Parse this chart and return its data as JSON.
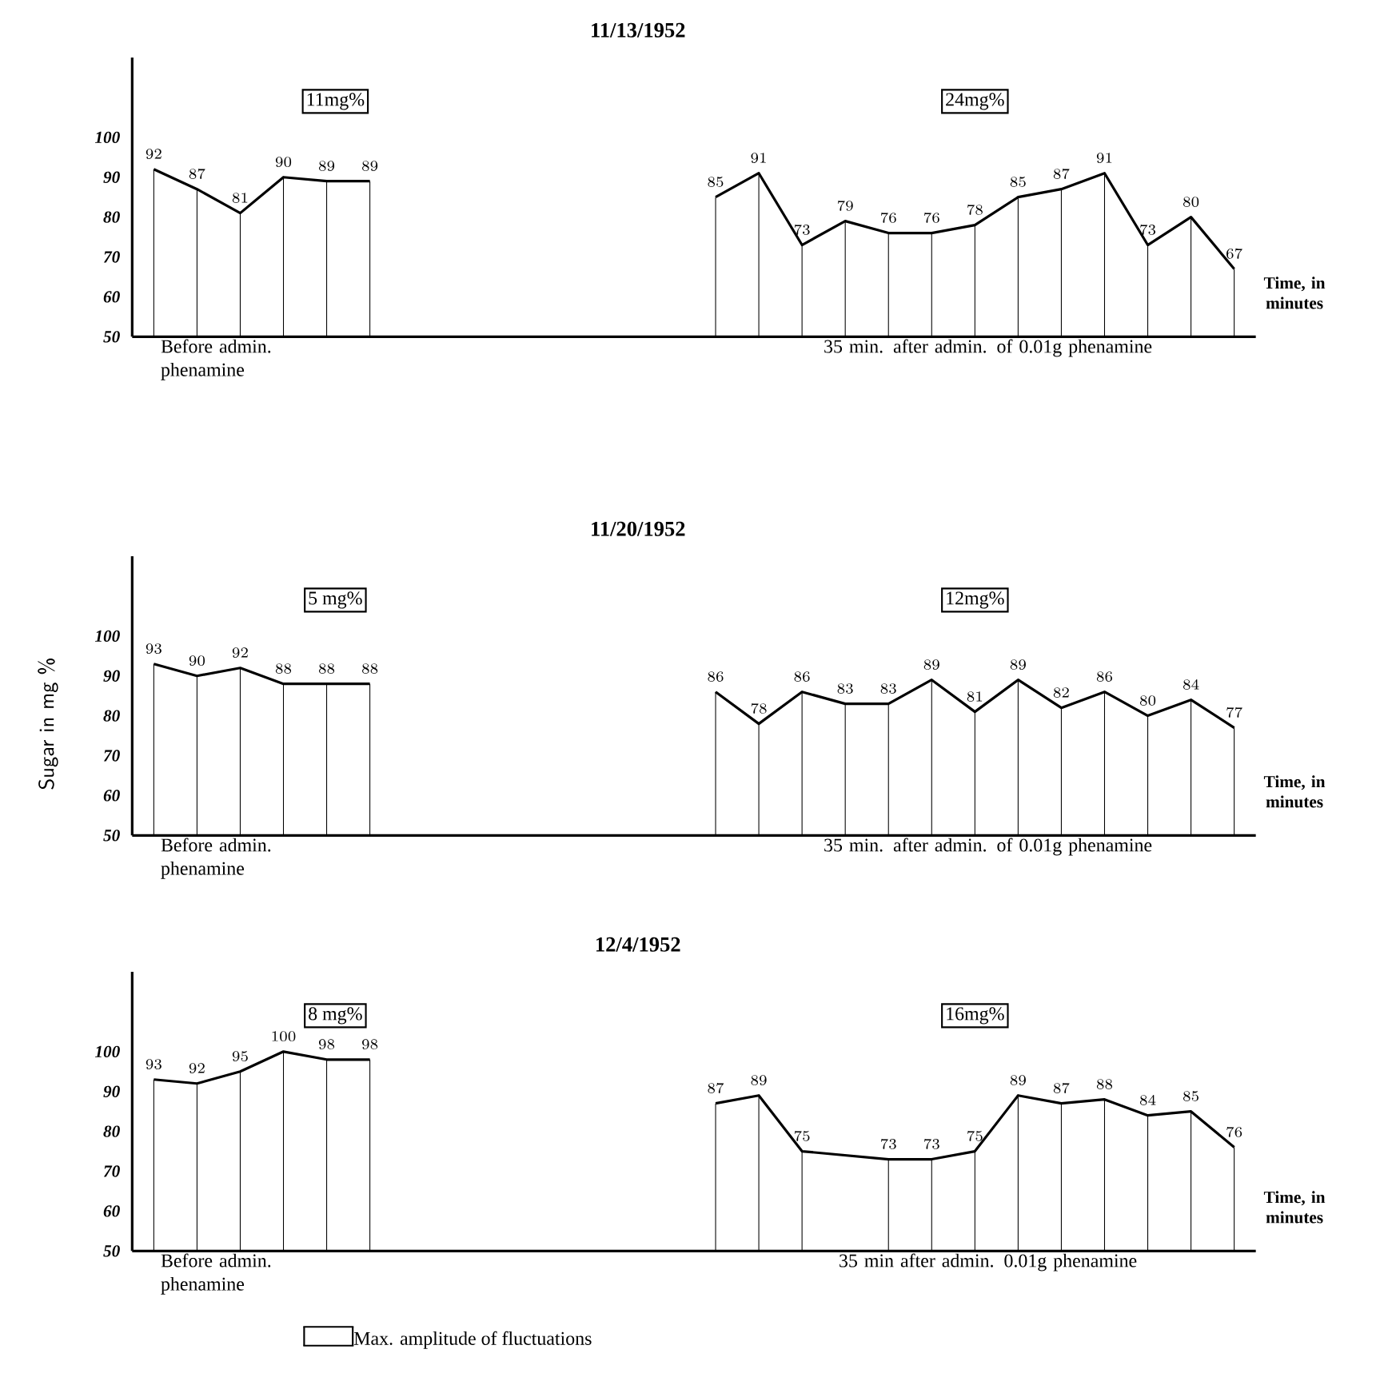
{
  "chart_data": [
    {
      "type": "line",
      "title": "11/13/1952",
      "categories": [
        null,
        null,
        null,
        null,
        null,
        null,
        null,
        null,
        null,
        null,
        null,
        null,
        null,
        null,
        null,
        null,
        null,
        null,
        null,
        null,
        null,
        null,
        null,
        null,
        null,
        null
      ],
      "series": [
        {
          "color": "#000000",
          "values": [
            92,
            87,
            81,
            90,
            89,
            89,
            null,
            null,
            null,
            null,
            null,
            null,
            null,
            null,
            null,
            null,
            null,
            null,
            null,
            null,
            null,
            null,
            null,
            null,
            null,
            null
          ]
        },
        {
          "color": "#000000",
          "values": [
            null,
            null,
            null,
            null,
            null,
            null,
            null,
            null,
            null,
            null,
            null,
            null,
            null,
            85,
            91,
            73,
            79,
            76,
            76,
            78,
            85,
            87,
            91,
            73,
            80,
            67
          ]
        }
      ],
      "ylim": [
        50,
        120
      ],
      "yticks": [
        50,
        60,
        70,
        80,
        90,
        100
      ],
      "data_labels": true,
      "tick_labels": "y",
      "annotations": [
        "11mg%",
        "24mg%",
        "Before admin. phenamine",
        "35 min. after admin. of 0.01g phenamine",
        "Time, in minutes"
      ]
    },
    {
      "type": "line",
      "title": "11/20/1952",
      "ylabel": "Sugar in mg %",
      "categories": [
        null,
        null,
        null,
        null,
        null,
        null,
        null,
        null,
        null,
        null,
        null,
        null,
        null,
        null,
        null,
        null,
        null,
        null,
        null,
        null,
        null,
        null,
        null,
        null,
        null,
        null
      ],
      "series": [
        {
          "color": "#000000",
          "values": [
            93,
            90,
            92,
            88,
            88,
            88,
            null,
            null,
            null,
            null,
            null,
            null,
            null,
            null,
            null,
            null,
            null,
            null,
            null,
            null,
            null,
            null,
            null,
            null,
            null,
            null
          ]
        },
        {
          "color": "#000000",
          "values": [
            null,
            null,
            null,
            null,
            null,
            null,
            null,
            null,
            null,
            null,
            null,
            null,
            null,
            86,
            78,
            86,
            83,
            83,
            89,
            81,
            89,
            82,
            86,
            80,
            84,
            77
          ]
        }
      ],
      "ylim": [
        50,
        120
      ],
      "yticks": [
        50,
        60,
        70,
        80,
        90,
        100
      ],
      "data_labels": true,
      "tick_labels": "y",
      "annotations": [
        "5 mg%",
        "12mg%",
        "Before admin. phenamine",
        "35 min. after admin. of 0.01g phenamine",
        "Time, in minutes"
      ]
    },
    {
      "type": "line",
      "title": "12/4/1952",
      "categories": [
        null,
        null,
        null,
        null,
        null,
        null,
        null,
        null,
        null,
        null,
        null,
        null,
        null,
        null,
        null,
        null,
        null,
        null,
        null,
        null,
        null,
        null,
        null,
        null,
        null,
        null
      ],
      "series": [
        {
          "color": "#000000",
          "values": [
            93,
            92,
            95,
            100,
            98,
            98,
            null,
            null,
            null,
            null,
            null,
            null,
            null,
            null,
            null,
            null,
            null,
            null,
            null,
            null,
            null,
            null,
            null,
            null,
            null,
            null
          ]
        },
        {
          "color": "#000000",
          "values": [
            null,
            null,
            null,
            null,
            null,
            null,
            null,
            null,
            null,
            null,
            null,
            null,
            null,
            87,
            89,
            75,
            null,
            73,
            73,
            75,
            89,
            87,
            88,
            84,
            85,
            76
          ]
        }
      ],
      "ylim": [
        50,
        120
      ],
      "yticks": [
        50,
        60,
        70,
        80,
        90,
        100
      ],
      "data_labels": true,
      "tick_labels": "y",
      "annotations": [
        "8 mg%",
        "16mg%",
        "Before admin. phenamine",
        "35 min after admin. 0.01g phenamine",
        "Time, in minutes",
        "Max. amplitude of fluctuations"
      ]
    }
  ]
}
